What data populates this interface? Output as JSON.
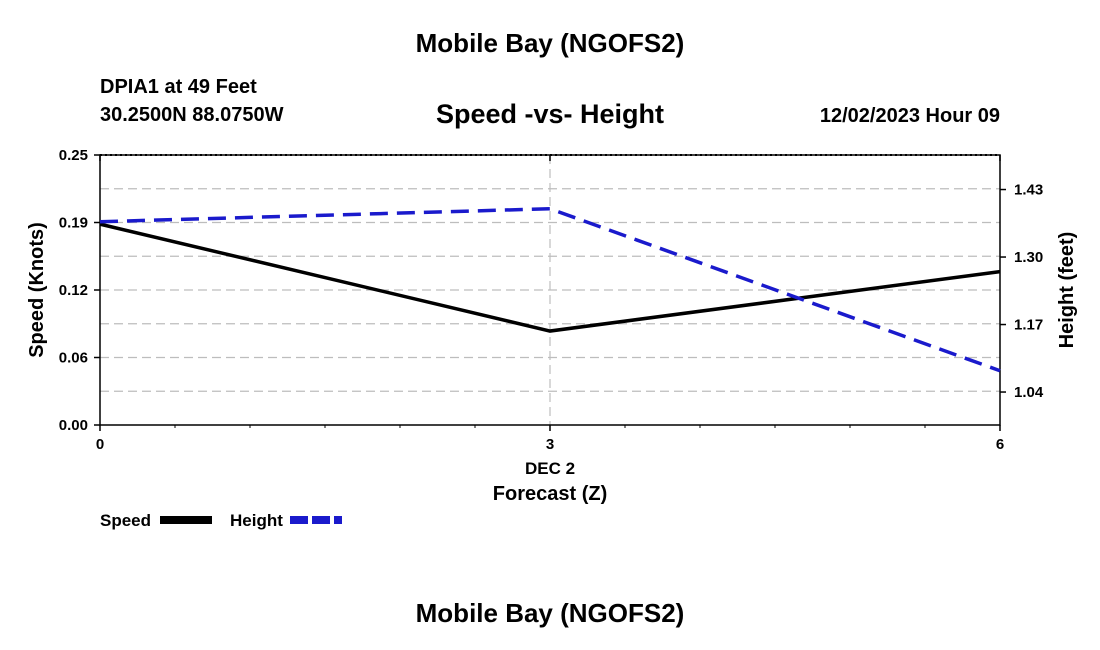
{
  "header": {
    "title": "Mobile Bay (NGOFS2)",
    "station": "DPIA1 at 49 Feet",
    "coordinates": "30.2500N  88.0750W",
    "subtitle": "Speed -vs- Height",
    "datetime": "12/02/2023 Hour 09"
  },
  "footer": {
    "title": "Mobile Bay (NGOFS2)"
  },
  "chart_data": {
    "type": "line",
    "title": "Speed -vs- Height",
    "xlabel": "Forecast (Z)",
    "ylabel_left": "Speed (Knots)",
    "ylabel_right": "Height (feet)",
    "x_ticks": [
      "0",
      "3",
      "6"
    ],
    "x_tick_values": [
      0,
      3,
      6
    ],
    "x_date_label": "DEC 2",
    "xlim": [
      0,
      6
    ],
    "y_left_ticks": [
      "0.00",
      "0.06",
      "0.12",
      "0.19",
      "0.25"
    ],
    "y_left_tick_values": [
      0.0,
      0.0625,
      0.125,
      0.1875,
      0.25
    ],
    "ylim_left": [
      0.0,
      0.25
    ],
    "y_right_ticks": [
      "1.04",
      "1.17",
      "1.30",
      "1.43"
    ],
    "y_right_tick_values": [
      1.04,
      1.17,
      1.3,
      1.43
    ],
    "ylim_right": [
      0.9765,
      1.4965
    ],
    "grid": true,
    "legend_position": "bottom-left",
    "series": [
      {
        "name": "Speed",
        "axis": "left",
        "color": "#000000",
        "style": "solid",
        "x": [
          0,
          3,
          6
        ],
        "values": [
          0.186,
          0.087,
          0.142
        ]
      },
      {
        "name": "Height",
        "axis": "right",
        "color": "#1a1acc",
        "style": "dashed",
        "x": [
          0,
          3,
          6
        ],
        "values": [
          1.368,
          1.393,
          1.081
        ]
      }
    ]
  }
}
